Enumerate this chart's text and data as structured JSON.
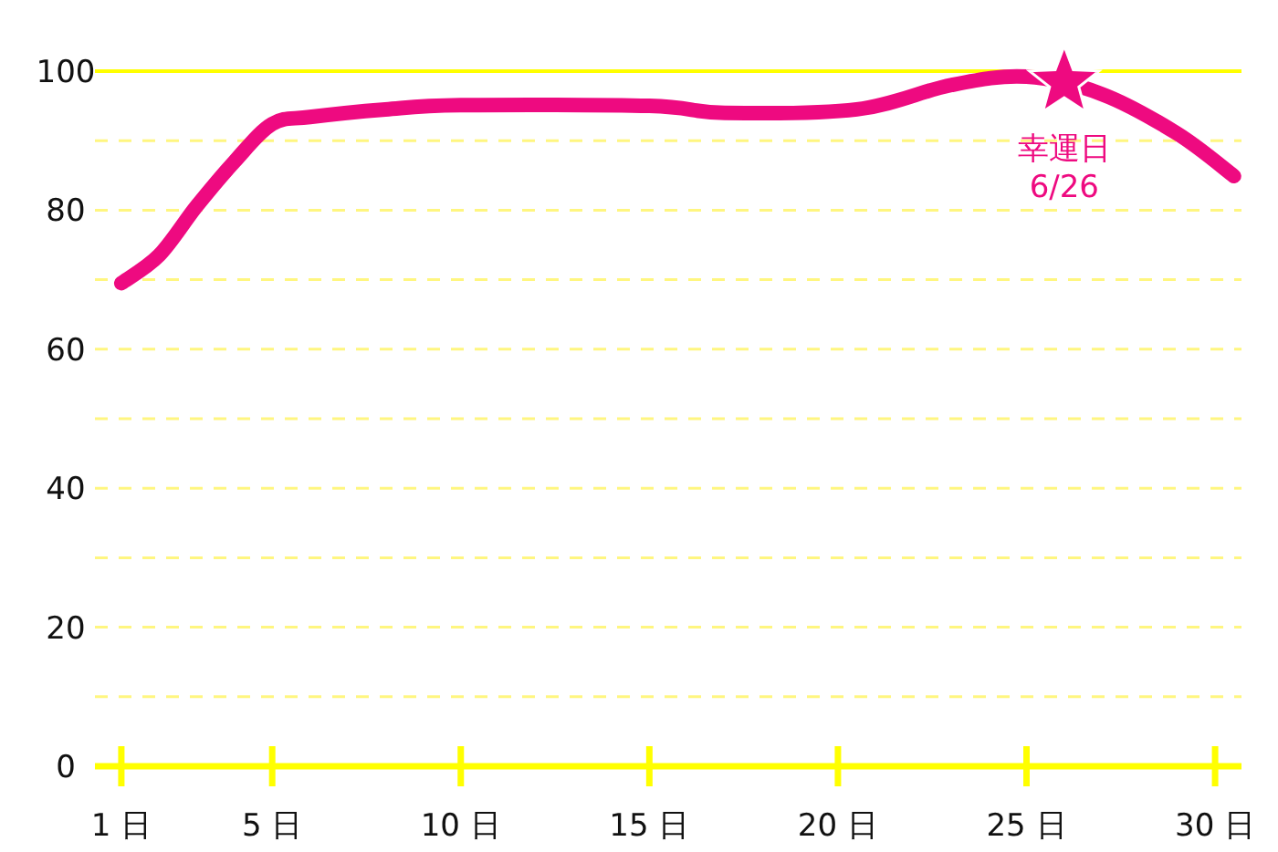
{
  "chart_data": {
    "type": "line",
    "xlim": [
      0.3,
      30.7
    ],
    "ylim": [
      0,
      100
    ],
    "xticks": [
      {
        "value": 1,
        "label": "1 日"
      },
      {
        "value": 5,
        "label": "5 日"
      },
      {
        "value": 10,
        "label": "10 日"
      },
      {
        "value": 15,
        "label": "15 日"
      },
      {
        "value": 20,
        "label": "20 日"
      },
      {
        "value": 25,
        "label": "25 日"
      },
      {
        "value": 30,
        "label": "30 日"
      }
    ],
    "yticks": [
      0,
      {
        "value": 10,
        "label": null
      },
      20,
      {
        "value": 30,
        "label": null
      },
      40,
      {
        "value": 50,
        "label": null
      },
      60,
      {
        "value": 70,
        "label": null
      },
      80,
      {
        "value": 90,
        "label": null
      },
      100
    ],
    "grid": "y",
    "line_style": "solid",
    "series": [
      {
        "type": "line",
        "color": "#ee0a80",
        "marker": "none",
        "x": [
          1,
          2,
          3,
          4,
          5,
          6,
          8,
          10,
          15,
          17,
          20.5,
          23,
          25,
          27,
          29,
          30.5
        ],
        "values": [
          69.5,
          73.5,
          80.6,
          87,
          92.4,
          93.4,
          94.5,
          95.1,
          95,
          94,
          94.5,
          98,
          99.2,
          96.7,
          91,
          84.9
        ]
      },
      {
        "type": "scatter",
        "color": "#ee0a80",
        "marker": "star",
        "x": [
          26
        ],
        "values": [
          98.4
        ]
      }
    ],
    "annotations": [
      {
        "text": "幸運日\n6/26",
        "x": 26,
        "y": 98.4
      }
    ]
  }
}
